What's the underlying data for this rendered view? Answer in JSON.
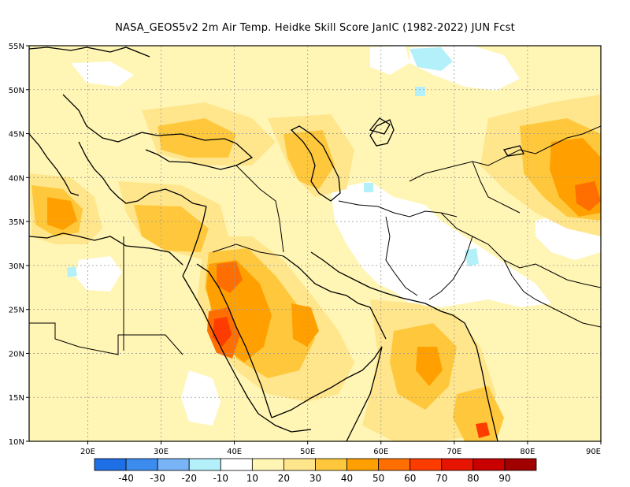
{
  "title": "NASA_GEOS5v2  2m Air Temp. Heidke Skill Score JanIC (1982-2022) JUN Fcst",
  "lat_labels": [
    "55N",
    "50N",
    "45N",
    "40N",
    "35N",
    "30N",
    "25N",
    "20N",
    "15N",
    "10N"
  ],
  "lon_labels": [
    "20E",
    "30E",
    "40E",
    "50E",
    "60E",
    "70E",
    "80E",
    "90E"
  ],
  "colorbar": {
    "colors": [
      "#1e6fe6",
      "#3c8cf0",
      "#78b4f6",
      "#b4f0fa",
      "#ffffff",
      "#fff5b4",
      "#ffe68c",
      "#ffc83c",
      "#ffa000",
      "#ff6e00",
      "#ff3c00",
      "#e61400",
      "#c80000",
      "#a00000"
    ],
    "labels": [
      "-40",
      "-30",
      "-20",
      "-10",
      "10",
      "20",
      "30",
      "40",
      "50",
      "60",
      "70",
      "80",
      "90"
    ]
  },
  "palette": {
    "white": "#ffffff",
    "pale_yellow": "#fff5b4",
    "light_yellow": "#ffe68c",
    "gold": "#ffc83c",
    "orange": "#ffa000",
    "dark_orange": "#ff6e00",
    "red_orange": "#ff3c00",
    "light_cyan": "#b4f0fa"
  }
}
